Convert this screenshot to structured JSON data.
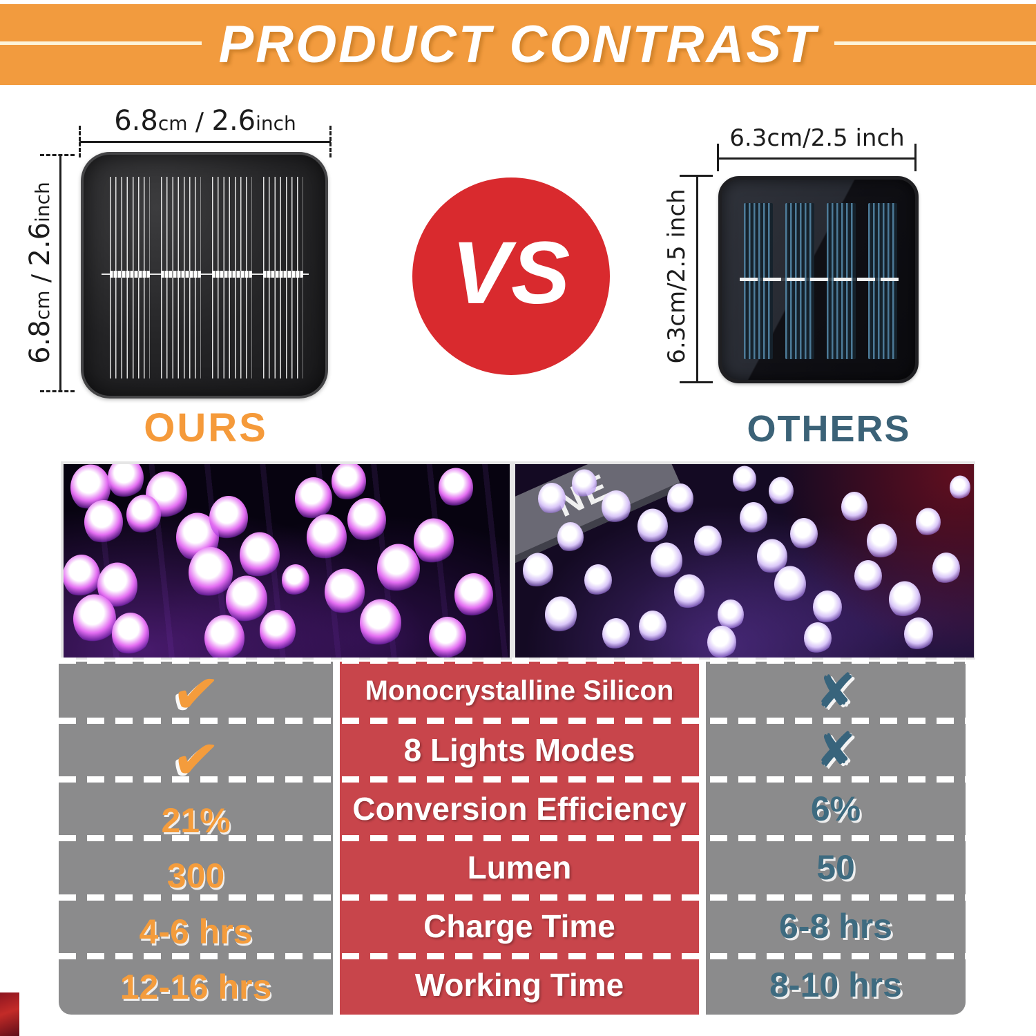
{
  "banner": {
    "title": "PRODUCT CONTRAST",
    "bg_color": "#f29b3e",
    "line_color": "#fdf4da",
    "text_color": "#ffffff"
  },
  "ours": {
    "label": "OURS",
    "label_color": "#f59a3a",
    "dim": {
      "n1": "6.8",
      "u1": "cm",
      "sep": " / ",
      "n2": "2.6",
      "u2": "inch"
    }
  },
  "vs": {
    "label": "VS",
    "circle_color": "#d92a2e",
    "text_color": "#ffffff"
  },
  "others": {
    "label": "OTHERS",
    "label_color": "#3b6277",
    "dim_top": "6.3cm/2.5 inch",
    "dim_side": "6.3cm/2.5 inch"
  },
  "photos": {
    "right_overlay_text": "NE"
  },
  "table": {
    "feature_col_bg": "#c8454b",
    "side_col_bg": "#8b8b8c",
    "ours_value_color": "#f49c3c",
    "others_value_color": "#3e6b80",
    "check_glyph": "✔",
    "x_glyph": "✘",
    "rows": [
      {
        "ours": "✔",
        "feature": "Monocrystalline Silicon",
        "others": "✘"
      },
      {
        "ours": "✔",
        "feature": "8 Lights Modes",
        "others": "✘"
      },
      {
        "ours": "21%",
        "feature": "Conversion Efficiency",
        "others": "6%"
      },
      {
        "ours": "300",
        "feature": "Lumen",
        "others": "50"
      },
      {
        "ours": "4-6 hrs",
        "feature": "Charge Time",
        "others": "6-8 hrs"
      },
      {
        "ours": "12-16 hrs",
        "feature": "Working Time",
        "others": "8-10 hrs"
      }
    ]
  }
}
